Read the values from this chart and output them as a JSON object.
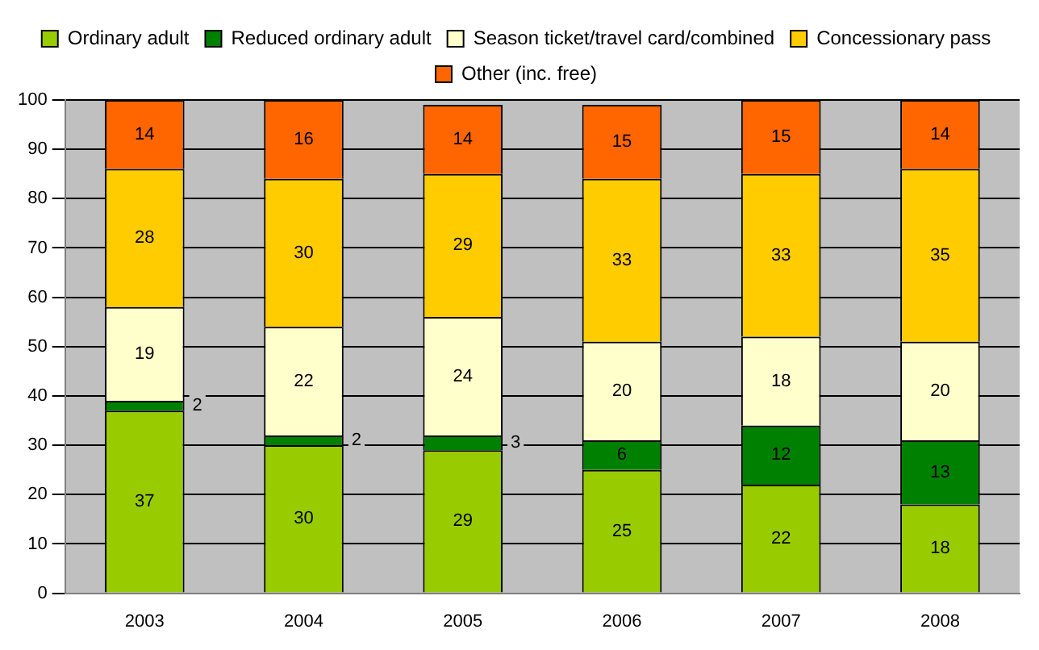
{
  "chart_data": {
    "type": "bar",
    "stacked": true,
    "categories": [
      "2003",
      "2004",
      "2005",
      "2006",
      "2007",
      "2008"
    ],
    "series": [
      {
        "name": "Ordinary adult",
        "color": "#99cc00",
        "values": [
          37,
          30,
          29,
          25,
          22,
          18
        ]
      },
      {
        "name": "Reduced ordinary adult",
        "color": "#008000",
        "values": [
          2,
          2,
          3,
          6,
          12,
          13
        ]
      },
      {
        "name": "Season ticket/travel card/combined",
        "color": "#ffffcc",
        "values": [
          19,
          22,
          24,
          20,
          18,
          20
        ]
      },
      {
        "name": "Concessionary pass",
        "color": "#ffcc00",
        "values": [
          28,
          30,
          29,
          33,
          33,
          35
        ]
      },
      {
        "name": "Other (inc. free)",
        "color": "#ff6600",
        "values": [
          14,
          16,
          14,
          15,
          15,
          14
        ]
      }
    ],
    "ylim": [
      0,
      100
    ],
    "yticks": [
      0,
      10,
      20,
      30,
      40,
      50,
      60,
      70,
      80,
      90,
      100
    ],
    "grid": "y",
    "legend": "top",
    "data_labels": true
  }
}
